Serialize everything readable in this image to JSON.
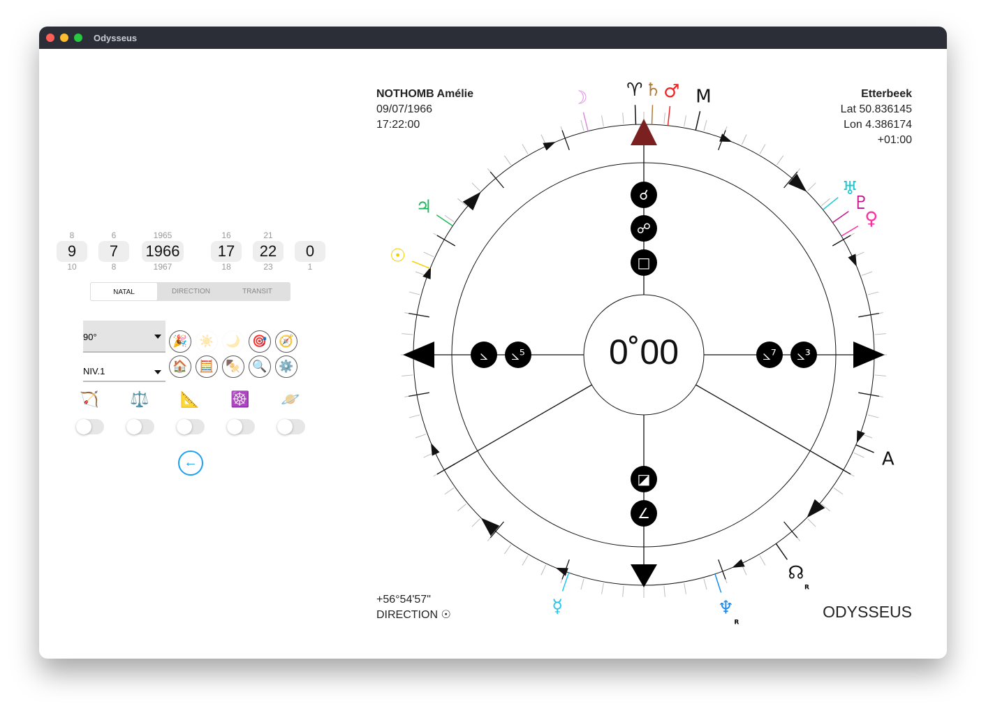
{
  "window": {
    "title": "Odysseus"
  },
  "pickers": [
    {
      "prev": "8",
      "value": "9",
      "next": "10"
    },
    {
      "prev": "6",
      "value": "7",
      "next": "8"
    },
    {
      "prev": "1965",
      "value": "1966",
      "next": "1967"
    },
    {
      "prev": "16",
      "value": "17",
      "next": "18"
    },
    {
      "prev": "21",
      "value": "22",
      "next": "23"
    },
    {
      "prev": "",
      "value": "0",
      "next": "1"
    }
  ],
  "modes": {
    "tabs": [
      "NATAL",
      "DIRECTION",
      "TRANSIT"
    ],
    "selected": "NATAL"
  },
  "angle_select": "90°",
  "level_select": "NIV.1",
  "icon_buttons": [
    "🎉",
    "☀️",
    "🌙",
    "🎯",
    "🧭",
    "🏠",
    "🧮",
    "🍢",
    "🔍",
    "⚙️"
  ],
  "toggles": [
    {
      "icon": "🏹",
      "on": false
    },
    {
      "icon": "⚖️",
      "on": false
    },
    {
      "icon": "📐",
      "on": false
    },
    {
      "icon": "☸️",
      "on": false
    },
    {
      "icon": "🪐",
      "on": false
    }
  ],
  "back_icon": "arrow-left-icon",
  "person": {
    "name": "NOTHOMB Amélie",
    "date": "09/07/1966",
    "time": "17:22:00"
  },
  "place": {
    "name": "Etterbeek",
    "lat": "Lat 50.836145",
    "lon": "Lon 4.386174",
    "tz": "+01:00"
  },
  "center_label": "0˚00",
  "footer": {
    "arc": "+56°54'57\"",
    "mode": "DIRECTION ☉",
    "logo": "ODYSSEUS"
  },
  "planets": [
    {
      "glyph": "☽",
      "color": "#d98ce0",
      "angle": -14
    },
    {
      "glyph": "♈",
      "color": "#111111",
      "angle": -2
    },
    {
      "glyph": "♄",
      "color": "#b07a3a",
      "angle": 2
    },
    {
      "glyph": "♂",
      "color": "#ee2222",
      "angle": 6
    },
    {
      "glyph": "M",
      "color": "#111111",
      "angle": 13
    },
    {
      "glyph": "♅",
      "color": "#18c8d0",
      "angle": 51
    },
    {
      "glyph": "♇",
      "color": "#c0158a",
      "angle": 55
    },
    {
      "glyph": "♀",
      "color": "#ff2ea0",
      "angle": 59
    },
    {
      "glyph": "A",
      "color": "#111111",
      "angle": 113
    },
    {
      "glyph": "☊",
      "color": "#111111",
      "angle": 145,
      "retro": "R"
    },
    {
      "glyph": "♆",
      "color": "#1a8cf0",
      "angle": 162,
      "retro": "R"
    },
    {
      "glyph": "☿",
      "color": "#20c8f0",
      "angle": 199
    },
    {
      "glyph": "☉",
      "color": "#f2d000",
      "angle": 292
    },
    {
      "glyph": "♃",
      "color": "#22b860",
      "angle": 304
    }
  ],
  "aspect_badges": {
    "up": [
      "☌",
      "☍",
      "□"
    ],
    "left": [
      "⦣",
      "⦣⁵"
    ],
    "right": [
      "⦣⁷",
      "⦣³"
    ],
    "down": [
      "◪",
      "∠"
    ]
  },
  "colors": {
    "mc_arrow": "#7a2020",
    "accent": "#1ea0f0"
  }
}
